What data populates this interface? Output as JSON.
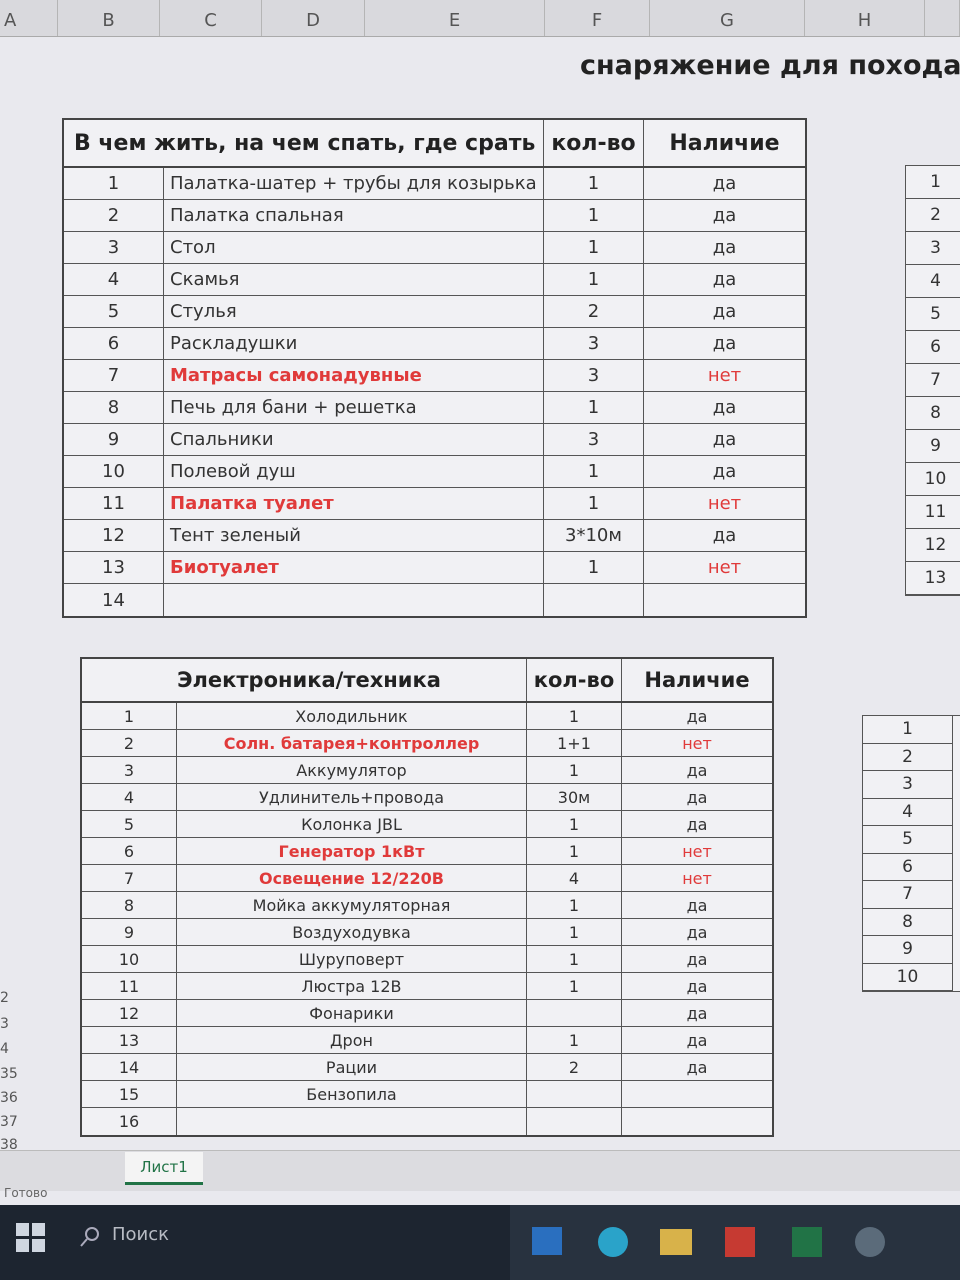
{
  "column_headers": [
    "A",
    "B",
    "C",
    "D",
    "E",
    "F",
    "G",
    "H"
  ],
  "title": "снаряжение для похода/",
  "tables": [
    {
      "header": {
        "name": "В чем жить, на чем спать, где срать",
        "qty": "кол-во",
        "avail": "Наличие"
      },
      "rows": [
        {
          "num": "1",
          "name": "Палатка-шатер + трубы для козырька",
          "qty": "1",
          "avail": "да"
        },
        {
          "num": "2",
          "name": "Палатка спальная",
          "qty": "1",
          "avail": "да"
        },
        {
          "num": "3",
          "name": "Стол",
          "qty": "1",
          "avail": "да"
        },
        {
          "num": "4",
          "name": "Скамья",
          "qty": "1",
          "avail": "да"
        },
        {
          "num": "5",
          "name": "Стулья",
          "qty": "2",
          "avail": "да"
        },
        {
          "num": "6",
          "name": "Раскладушки",
          "qty": "3",
          "avail": "да"
        },
        {
          "num": "7",
          "name": "Матрасы самонадувные",
          "qty": "3",
          "avail": "нет",
          "color": "#e03a3a"
        },
        {
          "num": "8",
          "name": "Печь для бани + решетка",
          "qty": "1",
          "avail": "да"
        },
        {
          "num": "9",
          "name": "Спальники",
          "qty": "3",
          "avail": "да"
        },
        {
          "num": "10",
          "name": "Полевой душ",
          "qty": "1",
          "avail": "да"
        },
        {
          "num": "11",
          "name": "Палатка туалет",
          "qty": "1",
          "avail": "нет",
          "color": "#e03a3a"
        },
        {
          "num": "12",
          "name": "Тент зеленый",
          "qty": "3*10м",
          "avail": "да"
        },
        {
          "num": "13",
          "name": "Биотуалет",
          "qty": "1",
          "avail": "нет",
          "color": "#e03a3a"
        },
        {
          "num": "14"
        }
      ]
    },
    {
      "header": {
        "name": "Электроника/техника",
        "qty": "кол-во",
        "avail": "Наличие"
      },
      "rows": [
        {
          "num": "1",
          "name": "Холодильник",
          "qty": "1",
          "avail": "да"
        },
        {
          "num": "2",
          "name": "Солн. батарея+контроллер",
          "qty": "1+1",
          "avail": "нет",
          "color": "#e03a3a"
        },
        {
          "num": "3",
          "name": "Аккумулятор",
          "qty": "1",
          "avail": "да"
        },
        {
          "num": "4",
          "name": "Удлинитель+провода",
          "qty": "30м",
          "avail": "да"
        },
        {
          "num": "5",
          "name": "Колонка JBL",
          "qty": "1",
          "avail": "да"
        },
        {
          "num": "6",
          "name": "Генератор 1кВт",
          "qty": "1",
          "avail": "нет",
          "color": "#e03a3a"
        },
        {
          "num": "7",
          "name": "Освещение 12/220В",
          "qty": "4",
          "avail": "нет",
          "color": "#e03a3a"
        },
        {
          "num": "8",
          "name": "Мойка аккумуляторная",
          "qty": "1",
          "avail": "да"
        },
        {
          "num": "9",
          "name": "Воздуходувка",
          "qty": "1",
          "avail": "да"
        },
        {
          "num": "10",
          "name": "Шуруповерт",
          "qty": "1",
          "avail": "да"
        },
        {
          "num": "11",
          "name": "Люстра 12В",
          "qty": "1",
          "avail": "да"
        },
        {
          "num": "12",
          "name": "Фонарики",
          "avail": "да"
        },
        {
          "num": "13",
          "name": "Дрон",
          "qty": "1",
          "avail": "да"
        },
        {
          "num": "14",
          "name": "Рации",
          "qty": "2",
          "avail": "да"
        },
        {
          "num": "15",
          "name": "Бензопила"
        },
        {
          "num": "16"
        }
      ]
    }
  ],
  "side_tables": [
    {
      "rows": [
        "1",
        "2",
        "3",
        "4",
        "5",
        "6",
        "7",
        "8",
        "9",
        "10",
        "11",
        "12",
        "13"
      ]
    },
    {
      "rows": [
        "1",
        "2",
        "3",
        "4",
        "5",
        "6",
        "7",
        "8",
        "9",
        "10"
      ]
    }
  ],
  "row_numbers": [
    "2",
    "3",
    "4",
    "35",
    "36",
    "37",
    "38"
  ],
  "sheet_tab": "Лист1",
  "status": "Готово",
  "taskbar": {
    "search": "Поиск"
  }
}
